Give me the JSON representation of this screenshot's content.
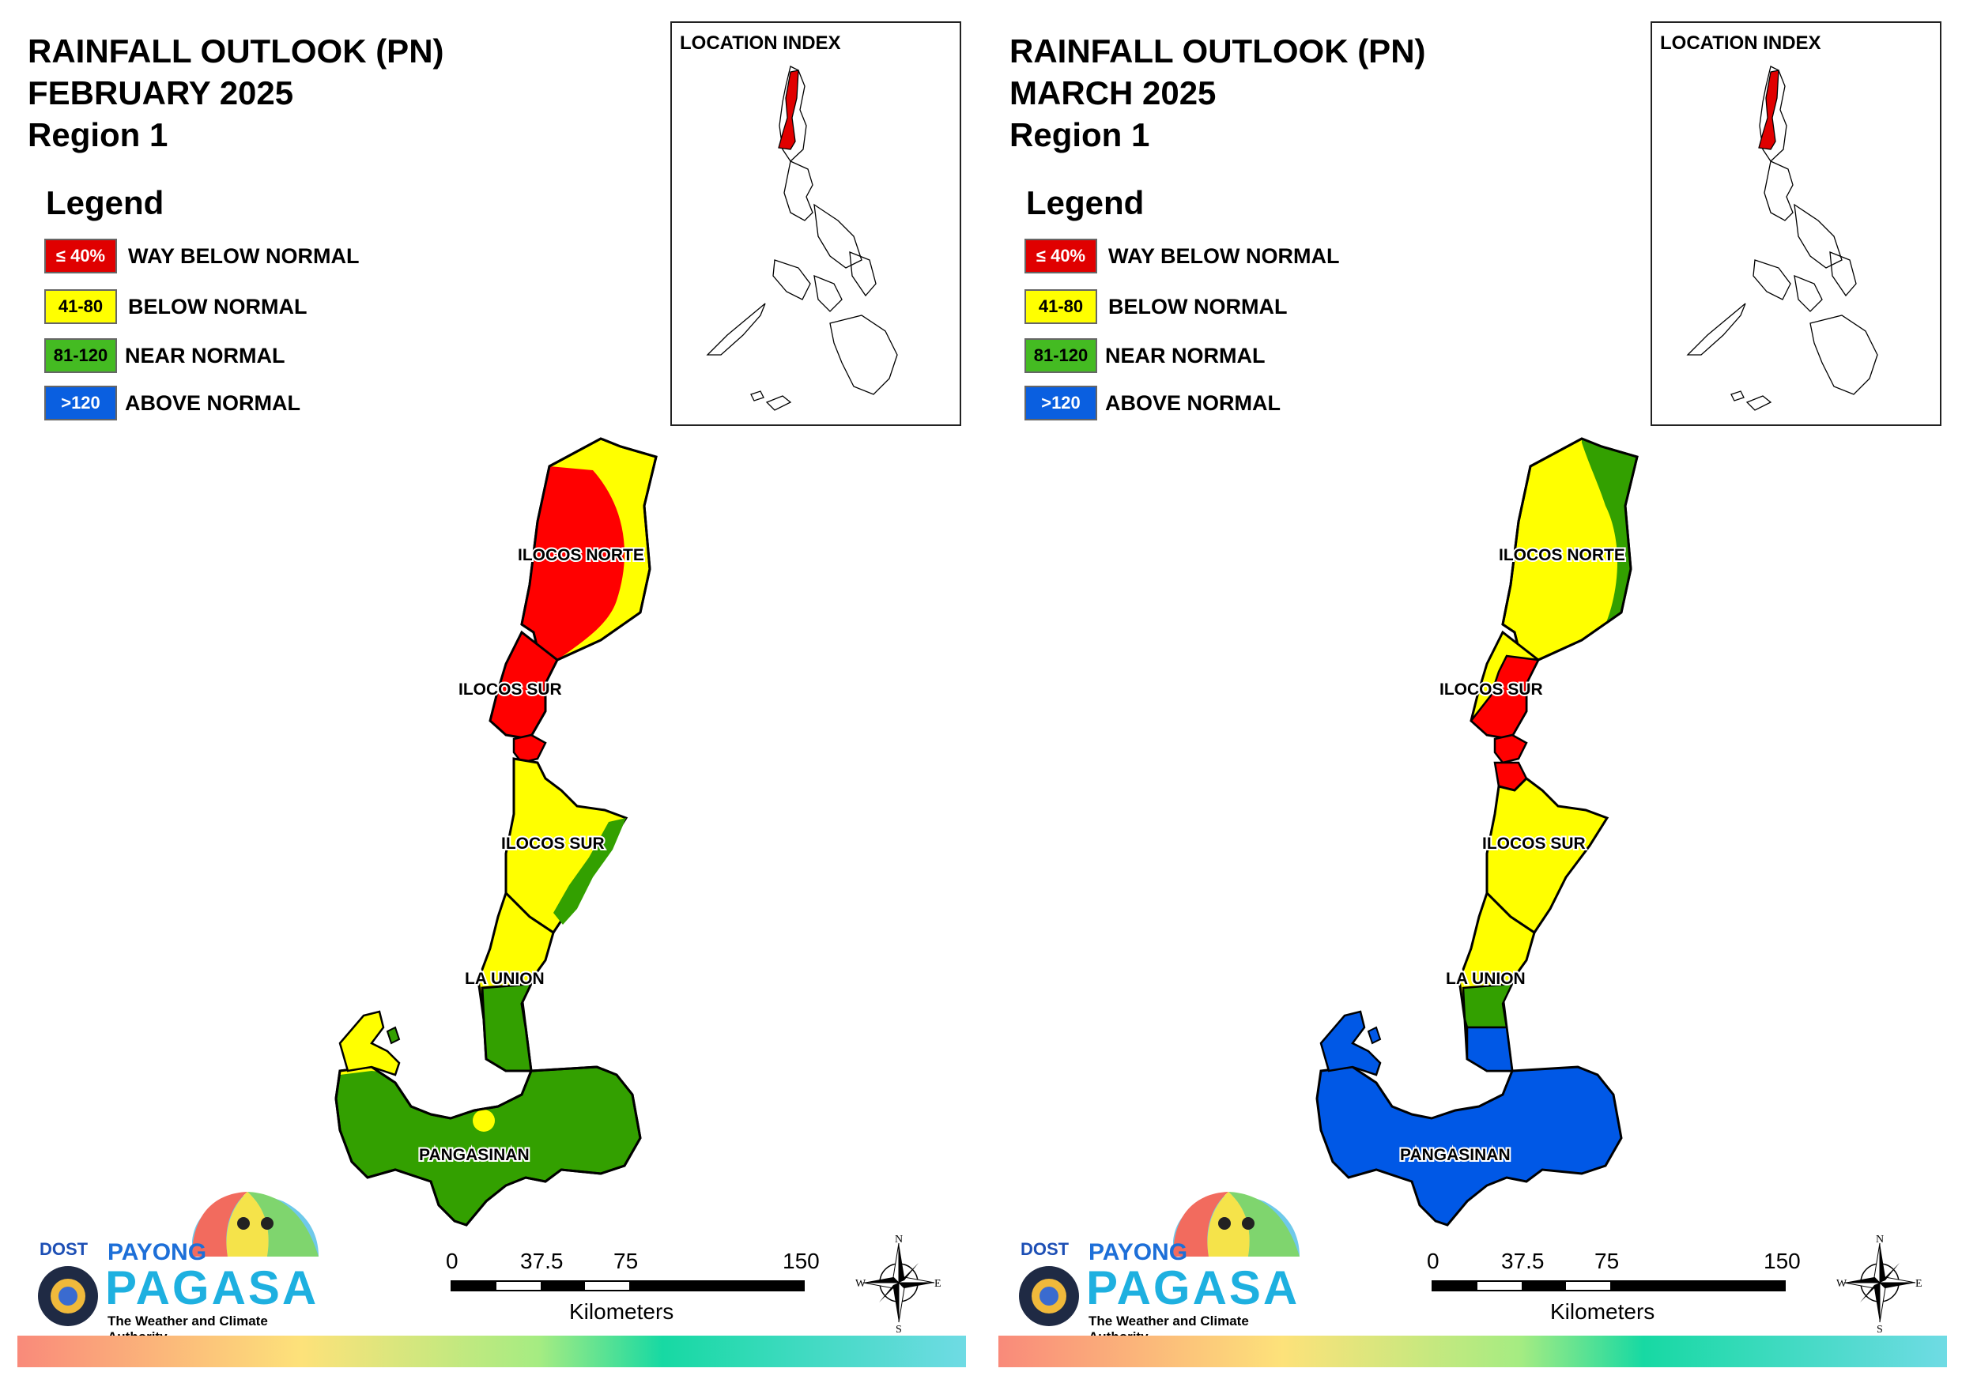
{
  "colors": {
    "way_below": "#ff0000",
    "below": "#ffff00",
    "near": "#33a000",
    "above": "#0058e6"
  },
  "legend": {
    "title": "Legend",
    "items": [
      {
        "range": "≤ 40%",
        "label": "WAY BELOW NORMAL",
        "color": "#e00000",
        "text_color": "#ffffff"
      },
      {
        "range": "41-80",
        "label": "BELOW NORMAL",
        "color": "#ffff00",
        "text_color": "#000000"
      },
      {
        "range": "81-120",
        "label": "NEAR NORMAL",
        "color": "#44bb22",
        "text_color": "#000000"
      },
      {
        "range": ">120",
        "label": "ABOVE NORMAL",
        "color": "#0a5fe0",
        "text_color": "#ffffff"
      }
    ]
  },
  "location_index": {
    "title": "LOCATION INDEX"
  },
  "panels": [
    {
      "title_line1": "RAINFALL OUTLOOK (PN)",
      "title_line2": "FEBRUARY 2025",
      "title_line3": "Region 1",
      "provinces": {
        "ilocos_norte": {
          "name": "ILOCOS NORTE",
          "classes": [
            "way_below",
            "below"
          ]
        },
        "ilocos_sur_north": {
          "name": "ILOCOS SUR",
          "classes": [
            "way_below"
          ]
        },
        "ilocos_sur_south": {
          "name": "ILOCOS SUR",
          "classes": [
            "below",
            "near"
          ]
        },
        "la_union": {
          "name": "LA UNION",
          "classes": [
            "below",
            "near"
          ]
        },
        "pangasinan": {
          "name": "PANGASINAN",
          "classes": [
            "near",
            "below"
          ]
        }
      }
    },
    {
      "title_line1": "RAINFALL OUTLOOK (PN)",
      "title_line2": "MARCH 2025",
      "title_line3": "Region 1",
      "provinces": {
        "ilocos_norte": {
          "name": "ILOCOS NORTE",
          "classes": [
            "below",
            "near"
          ]
        },
        "ilocos_sur_north": {
          "name": "ILOCOS SUR",
          "classes": [
            "way_below"
          ]
        },
        "ilocos_sur_south": {
          "name": "ILOCOS SUR",
          "classes": [
            "below"
          ]
        },
        "la_union": {
          "name": "LA UNION",
          "classes": [
            "below",
            "near"
          ]
        },
        "pangasinan": {
          "name": "PANGASINAN",
          "classes": [
            "above"
          ]
        }
      }
    }
  ],
  "logo": {
    "dost": "DOST",
    "payong": "PAYONG",
    "pagasa": "PAGASA",
    "tagline": "The Weather and Climate Authority"
  },
  "scale_bar": {
    "ticks": [
      "0",
      "37.5",
      "75",
      "150"
    ],
    "unit": "Kilometers"
  },
  "compass": {
    "n": "N",
    "s": "S",
    "e": "E",
    "w": "W"
  }
}
